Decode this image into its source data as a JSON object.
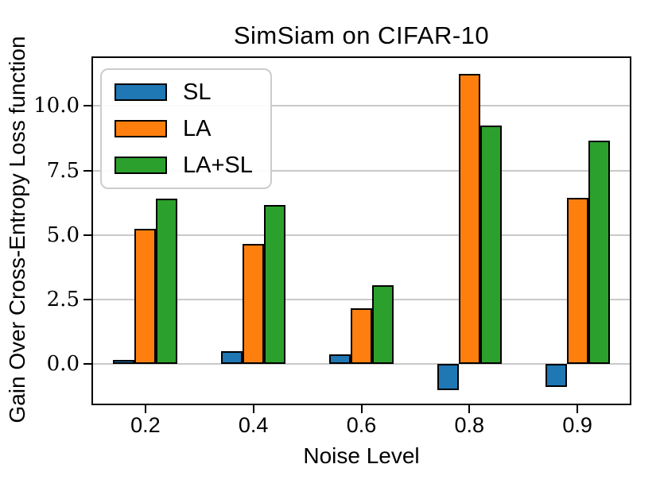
{
  "figure": {
    "title": "SimSiam on CIFAR-10",
    "xlabel": "Noise Level",
    "ylabel": "Gain Over Cross-Entropy Loss function"
  },
  "chart_data": {
    "type": "bar",
    "title": "SimSiam on CIFAR-10",
    "xlabel": "Noise Level",
    "ylabel": "Gain Over Cross-Entropy Loss function",
    "categories": [
      "0.2",
      "0.4",
      "0.6",
      "0.8",
      "0.9"
    ],
    "series": [
      {
        "name": "SL",
        "color": "#1f77b4",
        "values": [
          0.17,
          0.5,
          0.37,
          -1.0,
          -0.9
        ]
      },
      {
        "name": "LA",
        "color": "#ff7f0e",
        "values": [
          5.25,
          4.65,
          2.15,
          11.25,
          6.45
        ]
      },
      {
        "name": "LA+SL",
        "color": "#2ca02c",
        "values": [
          6.4,
          6.15,
          3.05,
          9.25,
          8.65
        ]
      }
    ],
    "yticks": [
      0.0,
      2.5,
      5.0,
      7.5,
      10.0
    ],
    "ytick_labels": [
      "0.0",
      "2.5",
      "5.0",
      "7.5",
      "10.0"
    ],
    "ylim": [
      -1.6,
      11.92
    ],
    "grid": true,
    "grid_color": "#c9c9c9",
    "axis_color": "#000000",
    "background_color": "#ffffff",
    "bar_edge_color": "#000000",
    "legend_position": "upper left"
  }
}
